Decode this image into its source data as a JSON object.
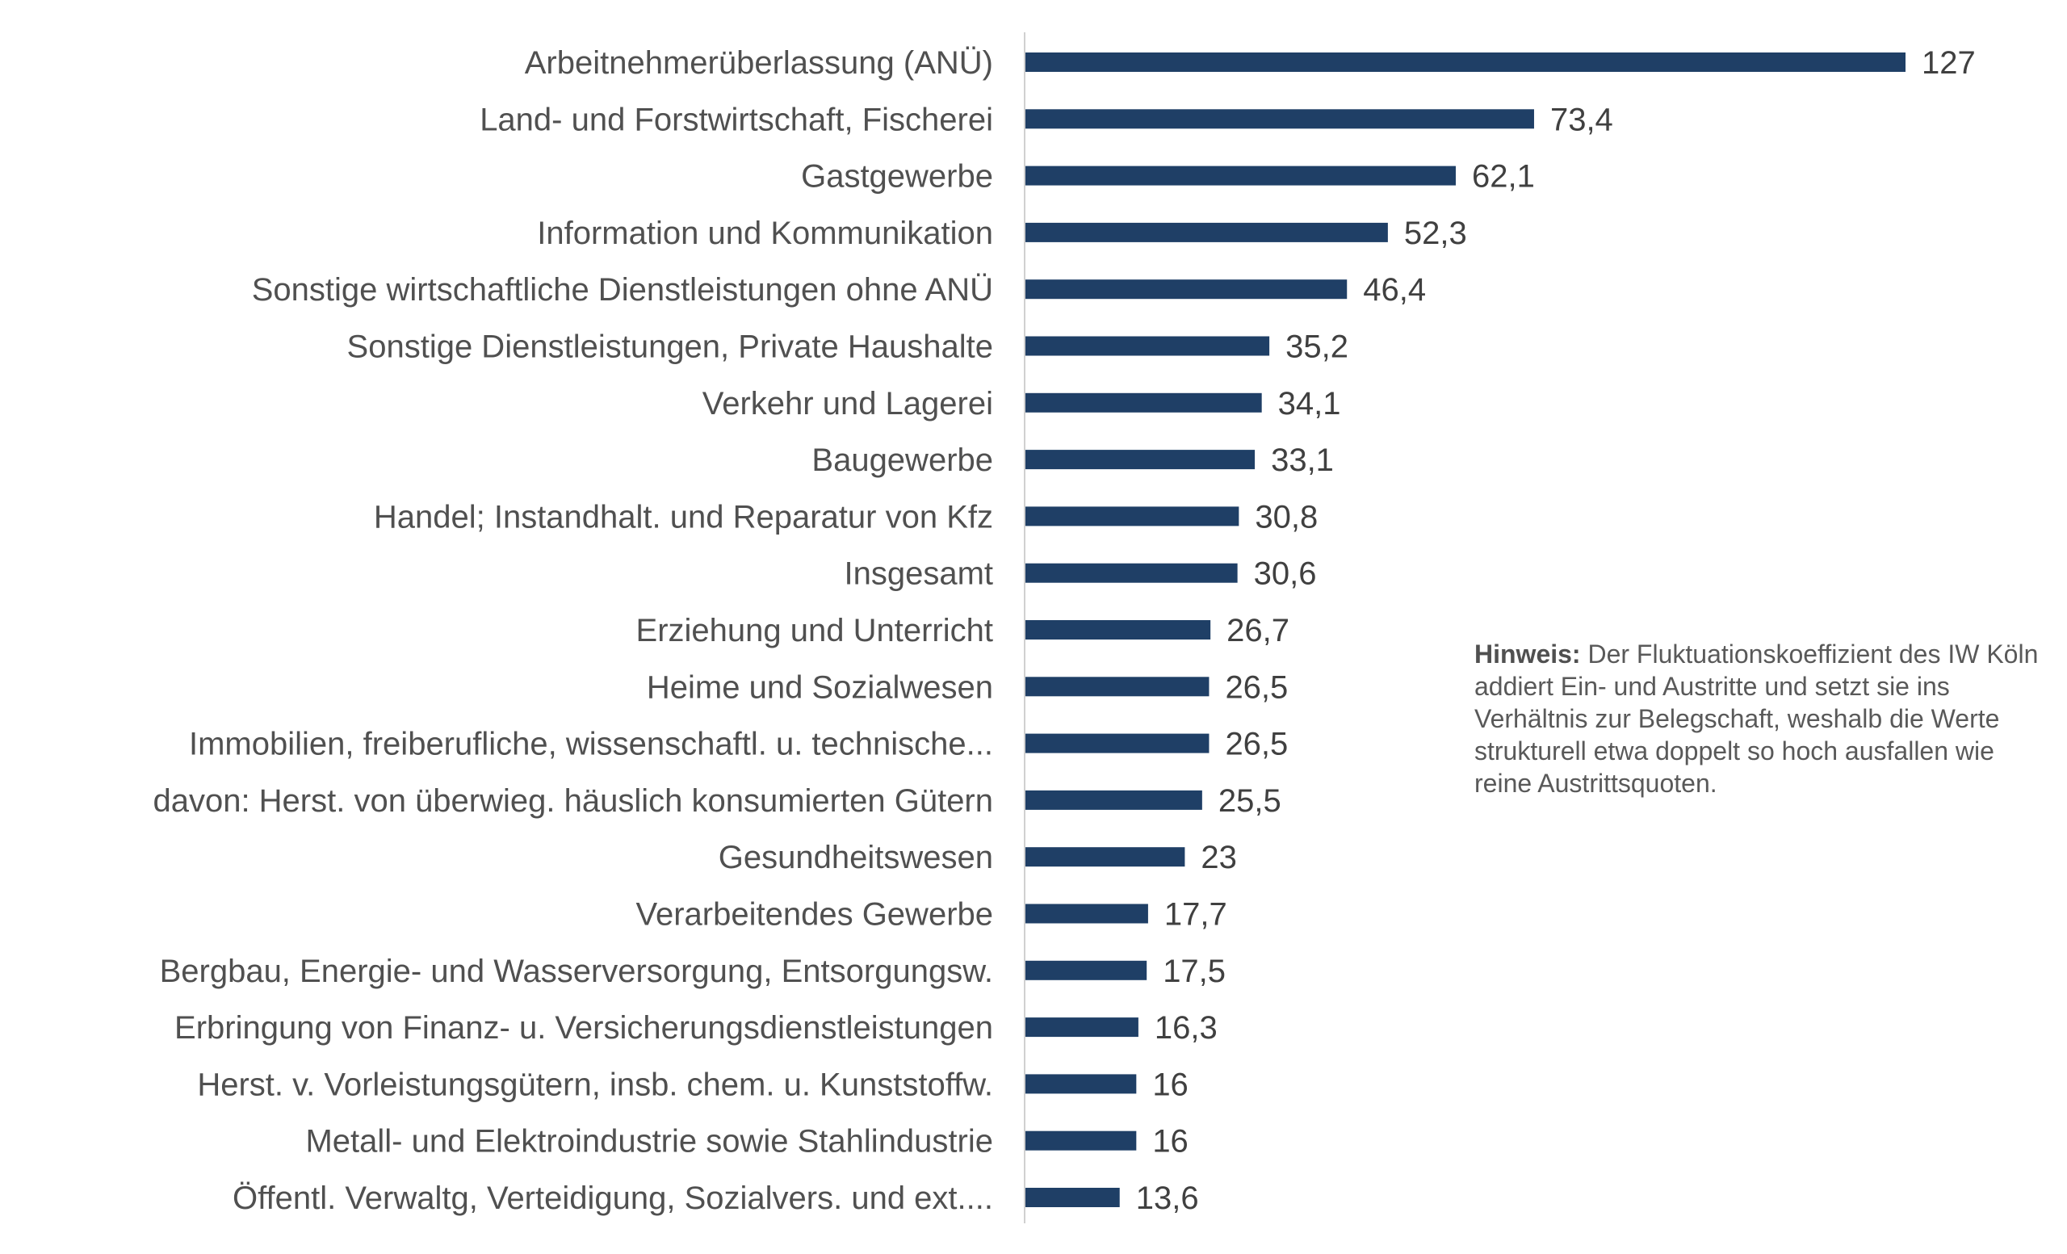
{
  "chart_data": {
    "type": "bar",
    "orientation": "horizontal",
    "title": "",
    "xlabel": "",
    "ylabel": "",
    "xlim": [
      0,
      127
    ],
    "grid": false,
    "bar_color": "#1f3f66",
    "categories": [
      "Arbeitnehmerüberlassung (ANÜ)",
      "Land- und Forstwirtschaft, Fischerei",
      "Gastgewerbe",
      "Information und Kommunikation",
      "Sonstige wirtschaftliche Dienstleistungen ohne ANÜ",
      "Sonstige Dienstleistungen, Private Haushalte",
      "Verkehr und Lagerei",
      "Baugewerbe",
      "Handel; Instandhalt. und Reparatur von Kfz",
      "Insgesamt",
      "Erziehung und Unterricht",
      "Heime und Sozialwesen",
      "Immobilien, freiberufliche, wissenschaftl. u. technische...",
      "davon: Herst. von überwieg. häuslich konsumierten Gütern",
      "Gesundheitswesen",
      "Verarbeitendes Gewerbe",
      "Bergbau, Energie- und Wasserversorgung, Entsorgungsw.",
      "Erbringung von Finanz- u. Versicherungsdienstleistungen",
      "Herst. v. Vorleistungsgütern, insb. chem. u. Kunststoffw.",
      "Metall- und Elektroindustrie sowie Stahlindustrie",
      "Öffentl. Verwaltg, Verteidigung, Sozialvers. und ext...."
    ],
    "values": [
      127,
      73.4,
      62.1,
      52.3,
      46.4,
      35.2,
      34.1,
      33.1,
      30.8,
      30.6,
      26.7,
      26.5,
      26.5,
      25.5,
      23,
      17.7,
      17.5,
      16.3,
      16,
      16,
      13.6
    ],
    "value_labels": [
      "127",
      "73,4",
      "62,1",
      "52,3",
      "46,4",
      "35,2",
      "34,1",
      "33,1",
      "30,8",
      "30,6",
      "26,7",
      "26,5",
      "26,5",
      "25,5",
      "23",
      "17,7",
      "17,5",
      "16,3",
      "16",
      "16",
      "13,6"
    ]
  },
  "note": {
    "bold": "Hinweis:",
    "text": "Der Fluktuationskoeffizient des IW Köln addiert Ein- und Austritte und setzt sie ins Verhältnis zur Belegschaft, weshalb die Werte strukturell etwa doppelt so hoch ausfallen wie reine Austrittsquoten."
  }
}
